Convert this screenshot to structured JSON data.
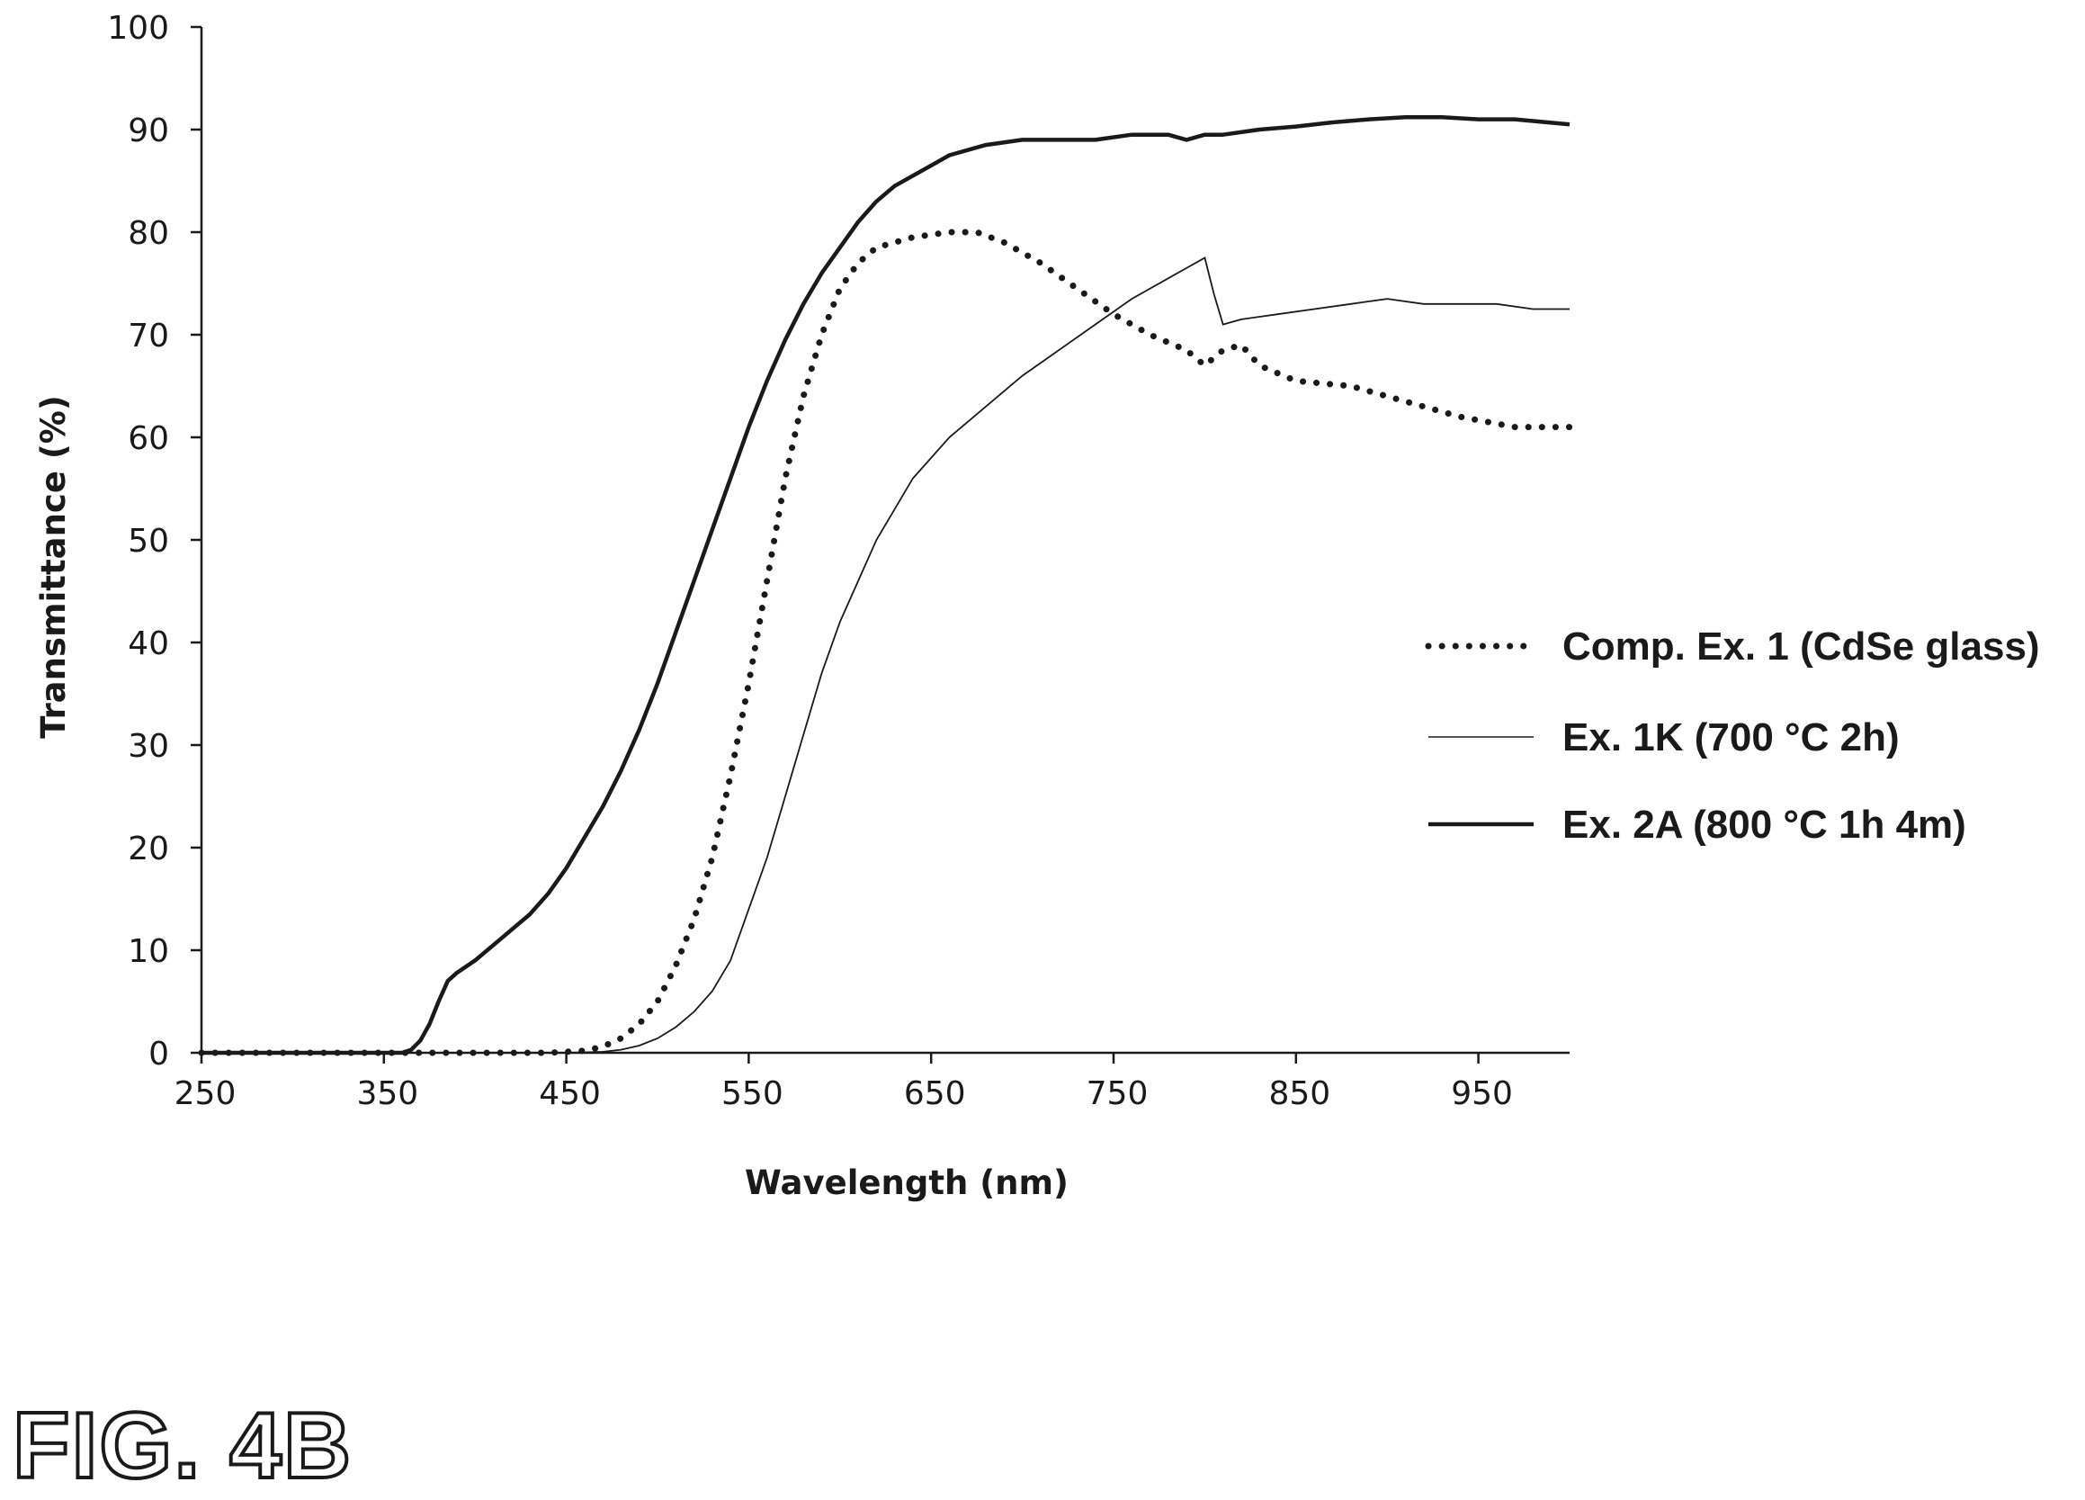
{
  "figure_label": "FIG. 4B",
  "chart_data": {
    "type": "line",
    "xlabel": "Wavelength (nm)",
    "ylabel": "Transmittance (%)",
    "xlim": [
      250,
      1000
    ],
    "ylim": [
      0,
      100
    ],
    "xticks": [
      250,
      350,
      450,
      550,
      650,
      750,
      850,
      950
    ],
    "yticks": [
      0,
      10,
      20,
      30,
      40,
      50,
      60,
      70,
      80,
      90,
      100
    ],
    "grid": false,
    "legend_position": "right",
    "series": [
      {
        "name": "Comp. Ex. 1 (CdSe glass)",
        "style": "dotted",
        "x": [
          250,
          350,
          440,
          460,
          470,
          480,
          490,
          500,
          510,
          520,
          530,
          540,
          550,
          560,
          570,
          580,
          590,
          600,
          610,
          620,
          640,
          660,
          675,
          690,
          710,
          730,
          750,
          770,
          790,
          800,
          810,
          820,
          830,
          850,
          880,
          910,
          940,
          970,
          1000
        ],
        "values": [
          0,
          0,
          0,
          0.2,
          0.6,
          1.4,
          2.8,
          5,
          8.5,
          13,
          19,
          27,
          36,
          46,
          56,
          64,
          70,
          74.5,
          77,
          78.5,
          79.5,
          80,
          80,
          79,
          77,
          74.5,
          72,
          70,
          68.5,
          67,
          68.5,
          69,
          67,
          65.5,
          65,
          63.5,
          62,
          61,
          61
        ]
      },
      {
        "name": "Ex. 1K (700 °C 2h)",
        "style": "thin",
        "x": [
          250,
          450,
          470,
          480,
          490,
          500,
          510,
          520,
          530,
          540,
          550,
          560,
          570,
          580,
          590,
          600,
          620,
          640,
          660,
          680,
          700,
          720,
          740,
          760,
          780,
          790,
          795,
          800,
          805,
          810,
          820,
          840,
          860,
          880,
          900,
          920,
          940,
          960,
          980,
          1000
        ],
        "values": [
          0,
          0,
          0.1,
          0.3,
          0.7,
          1.4,
          2.5,
          4,
          6,
          9,
          14,
          19,
          25,
          31,
          37,
          42,
          50,
          56,
          60,
          63,
          66,
          68.5,
          71,
          73.5,
          75.5,
          76.5,
          77,
          77.5,
          74,
          71,
          71.5,
          72,
          72.5,
          73,
          73.5,
          73,
          73,
          73,
          72.5,
          72.5
        ]
      },
      {
        "name": "Ex. 2A (800 °C 1h 4m)",
        "style": "thick",
        "x": [
          250,
          360,
          365,
          370,
          375,
          380,
          385,
          390,
          400,
          410,
          420,
          430,
          440,
          450,
          460,
          470,
          480,
          490,
          500,
          510,
          520,
          530,
          540,
          550,
          560,
          570,
          580,
          590,
          600,
          610,
          620,
          630,
          640,
          650,
          660,
          680,
          700,
          720,
          740,
          760,
          780,
          790,
          800,
          810,
          830,
          850,
          870,
          890,
          910,
          930,
          950,
          970,
          1000
        ],
        "values": [
          0,
          0,
          0.3,
          1.2,
          2.8,
          5,
          7,
          7.8,
          9,
          10.5,
          12,
          13.5,
          15.5,
          18,
          21,
          24,
          27.5,
          31.5,
          36,
          41,
          46,
          51,
          56,
          61,
          65.5,
          69.5,
          73,
          76,
          78.5,
          81,
          83,
          84.5,
          85.5,
          86.5,
          87.5,
          88.5,
          89,
          89,
          89,
          89.5,
          89.5,
          89,
          89.5,
          89.5,
          90,
          90.3,
          90.7,
          91,
          91.2,
          91.2,
          91,
          91,
          90.5
        ]
      }
    ]
  }
}
